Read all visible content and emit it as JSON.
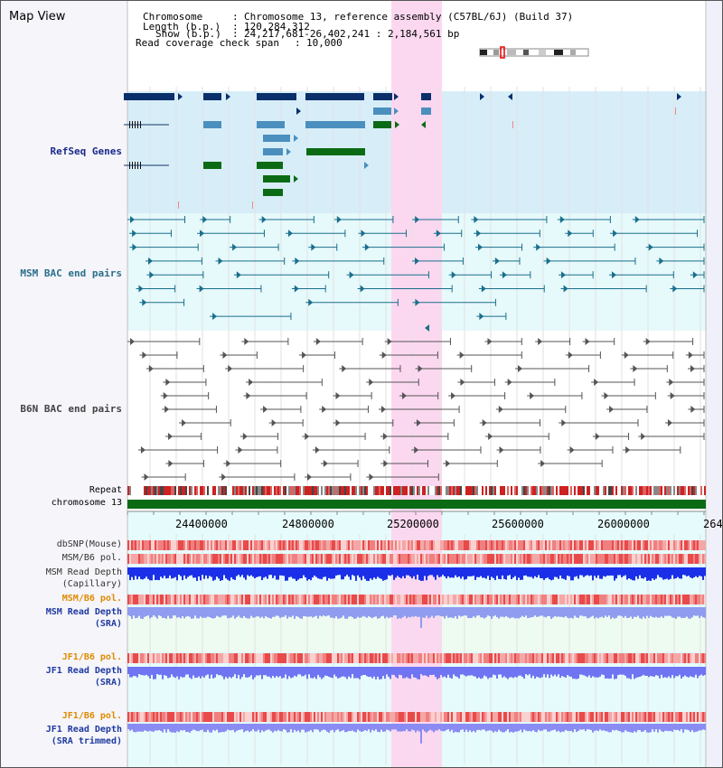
{
  "window": {
    "title": "Map View"
  },
  "header": {
    "chromosome_label": "Chromosome",
    "chromosome_value": "Chromosome 13, reference assembly (C57BL/6J) (Build 37)",
    "length_label": "Length (b.p.)",
    "length_value": "120,284,312",
    "show_label": "Show (b.p.)",
    "show_value": "24,217,681-26,402,241 : 2,184,561 bp",
    "coverage_label": "Read coverage check span",
    "coverage_value": "10,000"
  },
  "tracks": {
    "refseq_genes": "RefSeq Genes",
    "msm_bac": "MSM BAC end pairs",
    "b6n_bac": "B6N BAC end pairs",
    "repeat": "Repeat",
    "chromosome": "chromosome 13",
    "dbsnp": "dbSNP(Mouse)",
    "msm_b6_pol_1": "MSM/B6 pol.",
    "msm_read_depth_cap_1": "MSM Read Depth",
    "msm_read_depth_cap_2": "(Capillary)",
    "msm_b6_pol_2": "MSM/B6 pol.",
    "msm_read_depth_sra_1": "MSM Read Depth",
    "msm_read_depth_sra_2": "(SRA)",
    "jf1_b6_pol_1": "JF1/B6 pol.",
    "jf1_read_depth_sra_1": "JF1 Read Depth",
    "jf1_read_depth_sra_2": "(SRA)",
    "jf1_b6_pol_2": "JF1/B6 pol.",
    "jf1_read_depth_trim_1": "JF1 Read Depth",
    "jf1_read_depth_trim_2": "(SRA trimmed)"
  },
  "axis": {
    "ticks": [
      "24400000",
      "24800000",
      "25200000",
      "25600000",
      "26000000",
      "264"
    ]
  },
  "colors": {
    "navy": "#0a2f6b",
    "gene_blue": "#4b8fbf",
    "gene_green": "#0b6b14",
    "msm_teal": "#1a6f8c",
    "b6n_gray": "#555555",
    "highlight": "#fcd8f0",
    "label_navy": "#1a2a8a",
    "label_teal": "#2a6f8a",
    "label_gray": "#444444",
    "label_orange": "#e08a00",
    "label_blue": "#1f3aa0"
  }
}
